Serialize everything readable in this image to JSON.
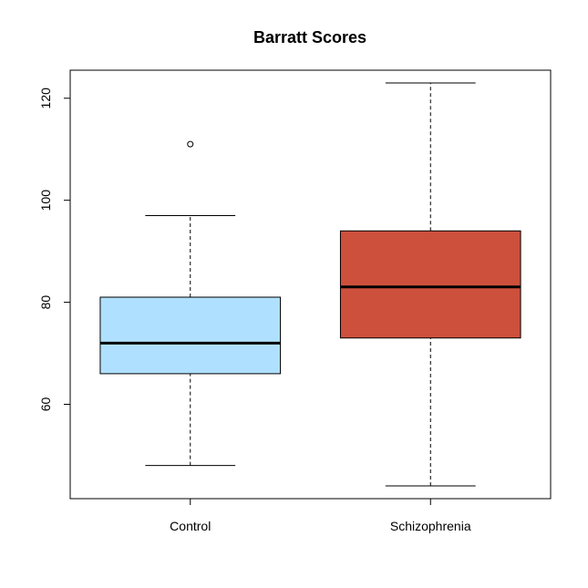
{
  "chart_data": {
    "type": "boxplot",
    "title": "Barratt Scores",
    "xlabel": "",
    "ylabel": "",
    "ylim": [
      41.5,
      125.5
    ],
    "yticks": [
      60,
      80,
      100,
      120
    ],
    "ytick_labels": [
      "60",
      "80",
      "100",
      "120"
    ],
    "categories": [
      "Control",
      "Schizophrenia"
    ],
    "series": [
      {
        "category": "Control",
        "whisker_low": 48,
        "q1": 66,
        "median": 72,
        "q3": 81,
        "whisker_high": 97,
        "outliers": [
          111
        ],
        "color": "#b0e0ff"
      },
      {
        "category": "Schizophrenia",
        "whisker_low": 44,
        "q1": 73,
        "median": 83,
        "q3": 94,
        "whisker_high": 123,
        "outliers": [],
        "color": "#cd503c"
      }
    ],
    "grid": false,
    "legend": "none"
  }
}
